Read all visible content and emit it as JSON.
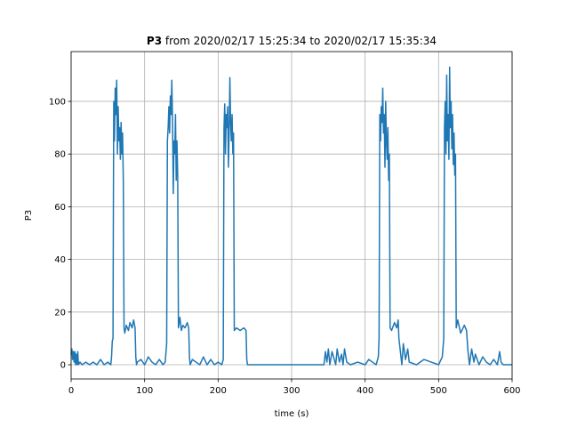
{
  "chart_data": {
    "type": "line",
    "title": {
      "bold": "P3",
      "rest": "from 2020/02/17 15:25:34 to 2020/02/17 15:35:34"
    },
    "xlabel": "time (s)",
    "ylabel": "P3",
    "xlim": [
      0,
      600
    ],
    "ylim": [
      -5.4,
      118.9
    ],
    "xticks": [
      0,
      100,
      200,
      300,
      400,
      500,
      600
    ],
    "yticks": [
      0,
      20,
      40,
      60,
      80,
      100
    ],
    "grid": true,
    "color": "#1f77b4",
    "x": [
      0,
      1,
      2,
      3,
      4,
      5,
      6,
      7,
      8,
      9,
      10,
      12,
      15,
      20,
      25,
      30,
      35,
      40,
      45,
      50,
      54,
      55,
      56,
      57,
      57.5,
      58,
      59,
      60,
      61,
      62,
      63,
      64,
      65,
      66,
      67,
      68,
      69,
      70,
      71,
      72,
      73,
      75,
      78,
      80,
      83,
      85,
      87,
      88,
      89,
      90,
      95,
      100,
      105,
      110,
      115,
      120,
      125,
      128,
      130,
      131,
      132,
      133,
      134,
      135,
      136,
      137,
      138,
      139,
      140,
      141,
      142,
      143,
      144,
      145,
      146,
      148,
      150,
      152,
      155,
      158,
      160,
      161,
      162,
      165,
      170,
      175,
      180,
      185,
      190,
      195,
      200,
      205,
      207,
      208,
      209,
      210,
      211,
      212,
      213,
      214,
      215,
      216,
      217,
      218,
      219,
      220,
      221,
      222,
      225,
      230,
      235,
      238,
      239,
      240,
      250,
      300,
      344,
      346,
      348,
      350,
      352,
      355,
      358,
      360,
      362,
      365,
      368,
      370,
      372,
      375,
      380,
      390,
      400,
      405,
      410,
      415,
      418,
      419,
      420,
      421,
      422,
      423,
      424,
      425,
      426,
      427,
      428,
      429,
      430,
      431,
      432,
      433,
      434,
      436,
      440,
      443,
      445,
      446,
      448,
      450,
      452,
      455,
      458,
      460,
      470,
      480,
      490,
      500,
      505,
      507,
      508,
      509,
      510,
      511,
      512,
      513,
      514,
      515,
      516,
      517,
      518,
      519,
      520,
      521,
      522,
      523,
      524,
      526,
      530,
      535,
      538,
      540,
      542,
      545,
      548,
      550,
      555,
      560,
      565,
      570,
      575,
      580,
      583,
      585,
      588,
      590,
      595,
      600
    ],
    "values": [
      4,
      6,
      2,
      5,
      1,
      5,
      0,
      4,
      0,
      5,
      0,
      1,
      0,
      1,
      0,
      1,
      0,
      2,
      0,
      1,
      0,
      3,
      9,
      10,
      60,
      100,
      85,
      105,
      95,
      108,
      80,
      98,
      85,
      90,
      78,
      92,
      80,
      88,
      70,
      14,
      12,
      15,
      13,
      16,
      14,
      17,
      14,
      3,
      0,
      1,
      2,
      0,
      3,
      1,
      0,
      2,
      0,
      1,
      8,
      85,
      90,
      98,
      88,
      102,
      95,
      108,
      92,
      65,
      85,
      80,
      95,
      70,
      85,
      72,
      14,
      18,
      13,
      15,
      14,
      16,
      14,
      3,
      0,
      2,
      1,
      0,
      3,
      0,
      2,
      0,
      1,
      0,
      2,
      90,
      99,
      80,
      95,
      90,
      98,
      75,
      88,
      109,
      92,
      85,
      95,
      80,
      88,
      13,
      14,
      13,
      14,
      13,
      2,
      0,
      0,
      0,
      0,
      5,
      1,
      6,
      0,
      5,
      2,
      0,
      6,
      1,
      4,
      0,
      6,
      1,
      0,
      1,
      0,
      2,
      1,
      0,
      3,
      10,
      95,
      85,
      98,
      92,
      105,
      88,
      95,
      75,
      100,
      85,
      78,
      90,
      70,
      80,
      14,
      13,
      16,
      14,
      17,
      10,
      5,
      0,
      8,
      2,
      6,
      1,
      0,
      2,
      1,
      0,
      3,
      10,
      90,
      100,
      80,
      110,
      85,
      95,
      78,
      113,
      90,
      100,
      82,
      95,
      76,
      88,
      72,
      80,
      14,
      17,
      12,
      15,
      13,
      5,
      0,
      6,
      1,
      4,
      0,
      3,
      1,
      0,
      2,
      0,
      5,
      1,
      0,
      0,
      0,
      0
    ]
  }
}
